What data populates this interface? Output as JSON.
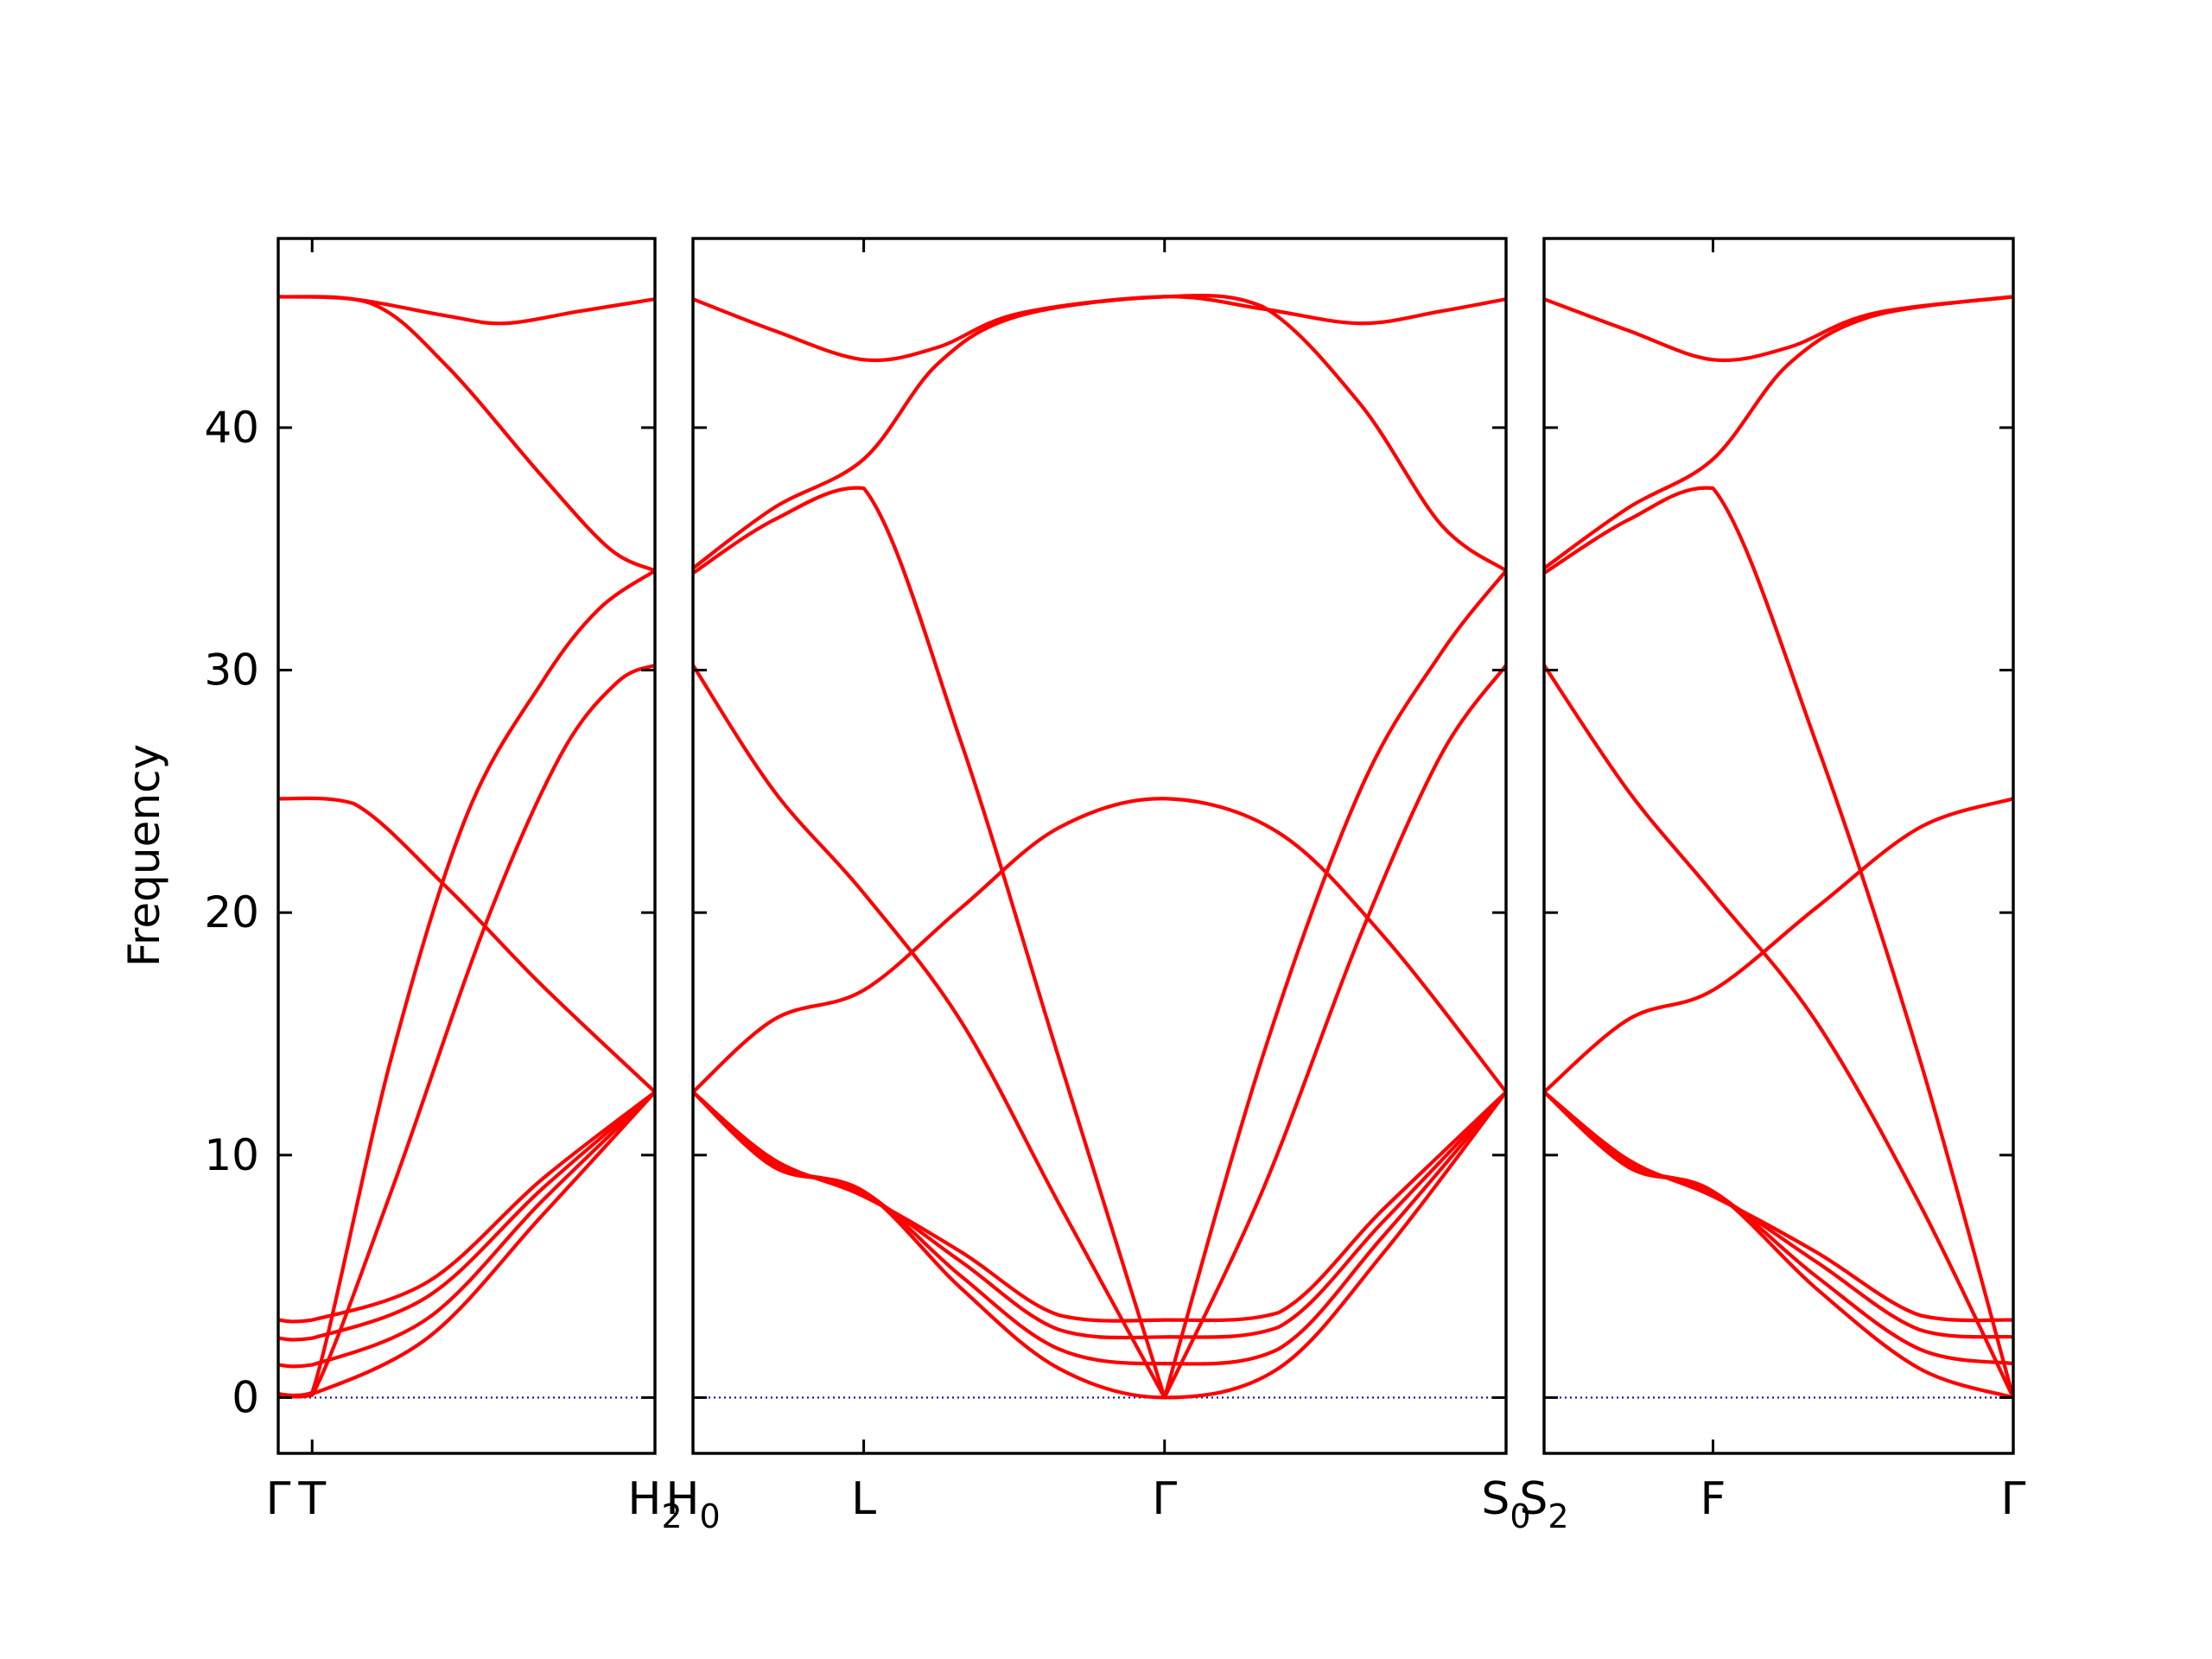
{
  "chart_data": {
    "type": "line",
    "title": "",
    "ylabel": "Frequency",
    "xlabel": "",
    "ylim": [
      -2.3,
      47.8
    ],
    "yticks": [
      0,
      10,
      20,
      30,
      40
    ],
    "grid": false,
    "legend": "none",
    "colors": {
      "bands": "#ff0000",
      "zero_line": "#0000cc",
      "frame": "#000000"
    },
    "panels": [
      {
        "id": "panel-1",
        "x_range": [
          0,
          1
        ],
        "points": [
          {
            "x": 0.0,
            "label": "Γ"
          },
          {
            "x": 0.09,
            "label": "T"
          },
          {
            "x": 1.0,
            "label": "H",
            "sub": "2"
          }
        ],
        "series": [
          {
            "values": [
              [
                0,
                0.15
              ],
              [
                0.09,
                0.15
              ],
              [
                0.4,
                2.5
              ],
              [
                0.7,
                7.5
              ],
              [
                1,
                12.6
              ]
            ]
          },
          {
            "values": [
              [
                0,
                1.35
              ],
              [
                0.09,
                1.35
              ],
              [
                0.4,
                3.3
              ],
              [
                0.7,
                8.1
              ],
              [
                1,
                12.6
              ]
            ]
          },
          {
            "values": [
              [
                0,
                2.45
              ],
              [
                0.09,
                2.45
              ],
              [
                0.4,
                4.2
              ],
              [
                0.7,
                8.6
              ],
              [
                1,
                12.6
              ]
            ]
          },
          {
            "values": [
              [
                0,
                3.2
              ],
              [
                0.09,
                3.2
              ],
              [
                0.4,
                4.8
              ],
              [
                0.7,
                9.0
              ],
              [
                1,
                12.6
              ]
            ]
          },
          {
            "values": [
              [
                0,
                24.7
              ],
              [
                0.2,
                24.5
              ],
              [
                0.45,
                21.0
              ],
              [
                0.7,
                17.0
              ],
              [
                1,
                12.6
              ]
            ]
          },
          {
            "values": [
              [
                0,
                0.1
              ],
              [
                0.09,
                0.2
              ],
              [
                0.3,
                14.0
              ],
              [
                0.5,
                24.0
              ],
              [
                0.7,
                29.5
              ],
              [
                0.85,
                32.5
              ],
              [
                1,
                34.1
              ]
            ]
          },
          {
            "values": [
              [
                0,
                0.1
              ],
              [
                0.09,
                0.1
              ],
              [
                0.3,
                8.5
              ],
              [
                0.55,
                19.5
              ],
              [
                0.75,
                26.5
              ],
              [
                0.9,
                29.5
              ],
              [
                1,
                30.2
              ]
            ]
          },
          {
            "values": [
              [
                0,
                45.4
              ],
              [
                0.25,
                45.1
              ],
              [
                0.45,
                42.5
              ],
              [
                0.7,
                38.0
              ],
              [
                0.88,
                35.0
              ],
              [
                1,
                34.1
              ]
            ]
          },
          {
            "values": [
              [
                0,
                45.4
              ],
              [
                0.2,
                45.3
              ],
              [
                0.45,
                44.6
              ],
              [
                0.6,
                44.3
              ],
              [
                0.8,
                44.8
              ],
              [
                1,
                45.3
              ]
            ]
          }
        ]
      },
      {
        "id": "panel-2",
        "x_range": [
          0,
          1
        ],
        "points": [
          {
            "x": 0.0,
            "label": "H",
            "sub": "0"
          },
          {
            "x": 0.21,
            "label": "L"
          },
          {
            "x": 0.58,
            "label": "Γ"
          },
          {
            "x": 1.0,
            "label": "S",
            "sub": "0"
          }
        ],
        "series": [
          {
            "values": [
              [
                0,
                12.6
              ],
              [
                0.1,
                9.5
              ],
              [
                0.21,
                8.5
              ],
              [
                0.33,
                4.5
              ],
              [
                0.45,
                1.2
              ],
              [
                0.58,
                0
              ],
              [
                0.72,
                1.2
              ],
              [
                0.85,
                6.0
              ],
              [
                1,
                12.6
              ]
            ]
          },
          {
            "values": [
              [
                0,
                12.6
              ],
              [
                0.1,
                9.6
              ],
              [
                0.21,
                8.5
              ],
              [
                0.33,
                5.0
              ],
              [
                0.45,
                2.0
              ],
              [
                0.58,
                1.4
              ],
              [
                0.72,
                2.0
              ],
              [
                0.85,
                6.7
              ],
              [
                1,
                12.6
              ]
            ]
          },
          {
            "values": [
              [
                0,
                12.6
              ],
              [
                0.1,
                9.7
              ],
              [
                0.21,
                8.4
              ],
              [
                0.33,
                5.6
              ],
              [
                0.45,
                2.8
              ],
              [
                0.58,
                2.5
              ],
              [
                0.72,
                2.9
              ],
              [
                0.85,
                7.3
              ],
              [
                1,
                12.6
              ]
            ]
          },
          {
            "values": [
              [
                0,
                12.6
              ],
              [
                0.1,
                9.8
              ],
              [
                0.21,
                8.3
              ],
              [
                0.33,
                6.0
              ],
              [
                0.45,
                3.4
              ],
              [
                0.58,
                3.2
              ],
              [
                0.72,
                3.5
              ],
              [
                0.85,
                7.8
              ],
              [
                1,
                12.6
              ]
            ]
          },
          {
            "values": [
              [
                0,
                12.6
              ],
              [
                0.1,
                15.6
              ],
              [
                0.21,
                16.8
              ],
              [
                0.33,
                20.2
              ],
              [
                0.45,
                23.5
              ],
              [
                0.58,
                24.7
              ],
              [
                0.72,
                23.3
              ],
              [
                0.85,
                19.0
              ],
              [
                1,
                12.6
              ]
            ]
          },
          {
            "values": [
              [
                0,
                30.2
              ],
              [
                0.1,
                25.0
              ],
              [
                0.21,
                20.8
              ],
              [
                0.33,
                15.5
              ],
              [
                0.45,
                8.0
              ],
              [
                0.58,
                0
              ]
            ]
          },
          {
            "values": [
              [
                0,
                34.0
              ],
              [
                0.1,
                36.2
              ],
              [
                0.21,
                37.5
              ],
              [
                0.33,
                27.0
              ],
              [
                0.45,
                14.0
              ],
              [
                0.58,
                0
              ]
            ]
          },
          {
            "values": [
              [
                0,
                34.2
              ],
              [
                0.1,
                36.7
              ],
              [
                0.21,
                38.7
              ],
              [
                0.3,
                42.6
              ],
              [
                0.4,
                44.6
              ],
              [
                0.58,
                45.4
              ],
              [
                0.7,
                45.0
              ],
              [
                0.82,
                41.0
              ],
              [
                0.92,
                36.0
              ],
              [
                1,
                34.1
              ]
            ]
          },
          {
            "values": [
              [
                0,
                45.3
              ],
              [
                0.1,
                44.0
              ],
              [
                0.21,
                42.8
              ],
              [
                0.3,
                43.3
              ],
              [
                0.4,
                44.7
              ],
              [
                0.58,
                45.4
              ],
              [
                0.7,
                44.9
              ],
              [
                0.82,
                44.3
              ],
              [
                0.92,
                44.8
              ],
              [
                1,
                45.3
              ]
            ]
          },
          {
            "values": [
              [
                0.58,
                0
              ],
              [
                0.7,
                14.0
              ],
              [
                0.82,
                25.0
              ],
              [
                0.92,
                30.7
              ],
              [
                1,
                34.1
              ]
            ]
          },
          {
            "values": [
              [
                0.58,
                0
              ],
              [
                0.7,
                8.5
              ],
              [
                0.82,
                19.0
              ],
              [
                0.92,
                26.5
              ],
              [
                1,
                30.2
              ]
            ]
          }
        ]
      },
      {
        "id": "panel-3",
        "x_range": [
          0,
          1
        ],
        "points": [
          {
            "x": 0.0,
            "label": "S",
            "sub": "2"
          },
          {
            "x": 0.36,
            "label": "F"
          },
          {
            "x": 1.0,
            "label": "Γ"
          }
        ],
        "series": [
          {
            "values": [
              [
                0,
                12.6
              ],
              [
                0.18,
                9.5
              ],
              [
                0.36,
                8.5
              ],
              [
                0.58,
                4.5
              ],
              [
                0.8,
                1.2
              ],
              [
                1,
                0
              ]
            ]
          },
          {
            "values": [
              [
                0,
                12.6
              ],
              [
                0.18,
                9.6
              ],
              [
                0.36,
                8.5
              ],
              [
                0.58,
                5.0
              ],
              [
                0.8,
                2.0
              ],
              [
                1,
                1.4
              ]
            ]
          },
          {
            "values": [
              [
                0,
                12.6
              ],
              [
                0.18,
                9.7
              ],
              [
                0.36,
                8.4
              ],
              [
                0.58,
                5.6
              ],
              [
                0.8,
                2.8
              ],
              [
                1,
                2.5
              ]
            ]
          },
          {
            "values": [
              [
                0,
                12.6
              ],
              [
                0.18,
                9.8
              ],
              [
                0.36,
                8.3
              ],
              [
                0.58,
                6.0
              ],
              [
                0.8,
                3.4
              ],
              [
                1,
                3.2
              ]
            ]
          },
          {
            "values": [
              [
                0,
                12.6
              ],
              [
                0.18,
                15.6
              ],
              [
                0.36,
                16.8
              ],
              [
                0.58,
                20.2
              ],
              [
                0.8,
                23.5
              ],
              [
                1,
                24.7
              ]
            ]
          },
          {
            "values": [
              [
                0,
                30.2
              ],
              [
                0.18,
                25.0
              ],
              [
                0.36,
                20.8
              ],
              [
                0.58,
                15.5
              ],
              [
                0.8,
                8.0
              ],
              [
                1,
                0
              ]
            ]
          },
          {
            "values": [
              [
                0,
                34.0
              ],
              [
                0.18,
                36.2
              ],
              [
                0.36,
                37.5
              ],
              [
                0.58,
                27.0
              ],
              [
                0.8,
                14.0
              ],
              [
                1,
                0
              ]
            ]
          },
          {
            "values": [
              [
                0,
                34.2
              ],
              [
                0.18,
                36.7
              ],
              [
                0.36,
                38.7
              ],
              [
                0.52,
                42.6
              ],
              [
                0.7,
                44.6
              ],
              [
                1,
                45.4
              ]
            ]
          },
          {
            "values": [
              [
                0,
                45.3
              ],
              [
                0.18,
                44.0
              ],
              [
                0.36,
                42.8
              ],
              [
                0.52,
                43.3
              ],
              [
                0.7,
                44.7
              ],
              [
                1,
                45.4
              ]
            ]
          }
        ]
      }
    ]
  }
}
